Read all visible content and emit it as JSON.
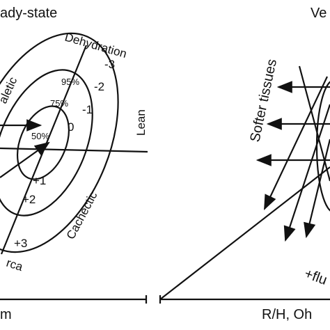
{
  "left_panel": {
    "title": "ady-state",
    "axis_label": "Dehydration",
    "ticks": [
      "-3",
      "-2",
      "-1",
      "0",
      "+1",
      "+2",
      "+3"
    ],
    "percentiles": [
      "95%",
      "75%",
      "50%"
    ],
    "quadrants": {
      "upper_right": "Lean",
      "lower_right": "Cachectic",
      "upper_left": "aletic",
      "bottom": "rca"
    },
    "x_axis_label": "m"
  },
  "right_panel": {
    "title": "Ve",
    "annotation": "Softer tissues",
    "arrow_label": "+flu",
    "x_axis_label": "R/H, Oh"
  }
}
